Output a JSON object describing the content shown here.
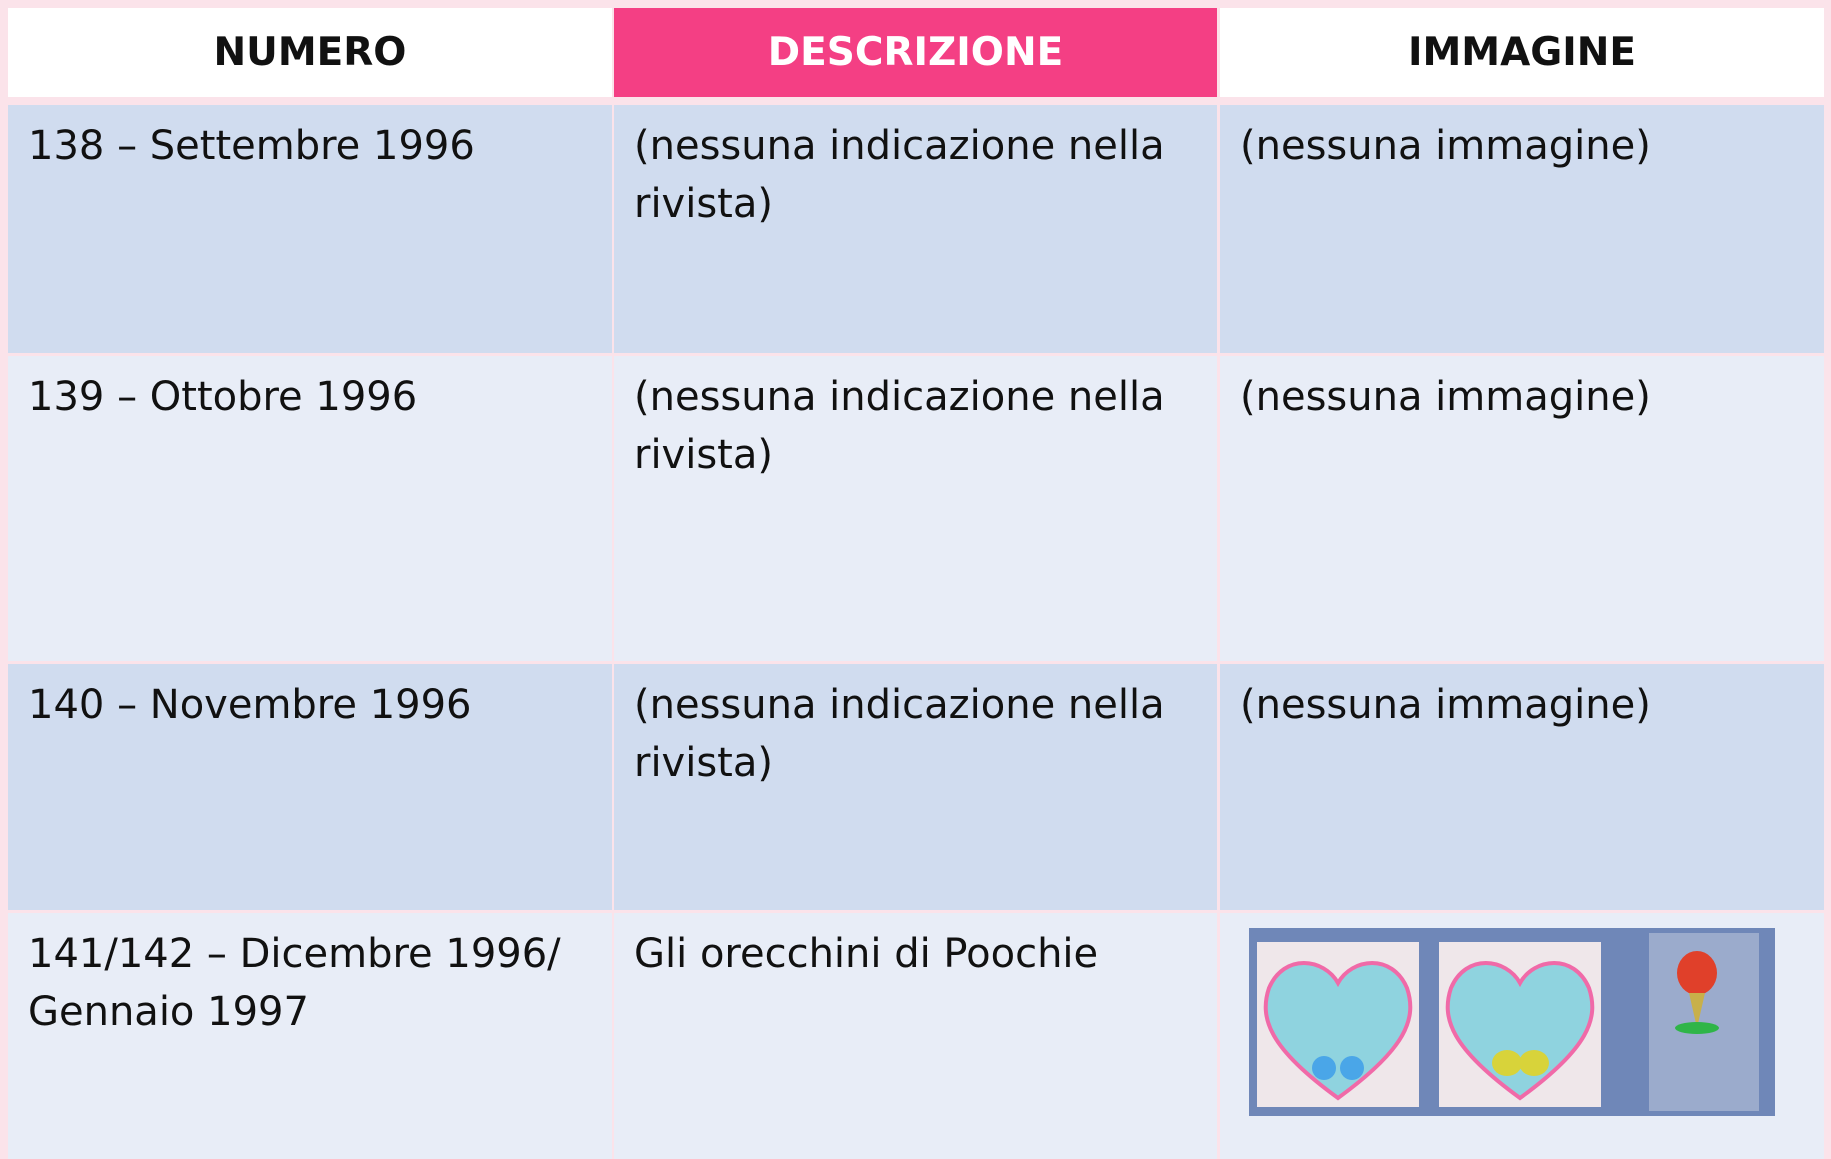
{
  "table": {
    "header": [
      "NUMERO",
      "DESCRIZIONE",
      "IMMAGINE"
    ],
    "rows": [
      {
        "numero": "138 – Settembre 1996",
        "descrizione": "(nessuna indicazione nella rivista)",
        "immagine": "(nessuna immagine)"
      },
      {
        "numero": "139 – Ottobre 1996",
        "descrizione": "(nessuna indicazione nella rivista)",
        "immagine": "(nessuna immagine)"
      },
      {
        "numero": "140 – Novembre 1996",
        "descrizione": "(nessuna indicazione nella rivista)",
        "immagine": "(nessuna immagine)"
      },
      {
        "numero": "141/142 – Dicembre 1996/ Gennaio 1997",
        "descrizione": "Gli orecchini di Poochie"
      }
    ]
  }
}
